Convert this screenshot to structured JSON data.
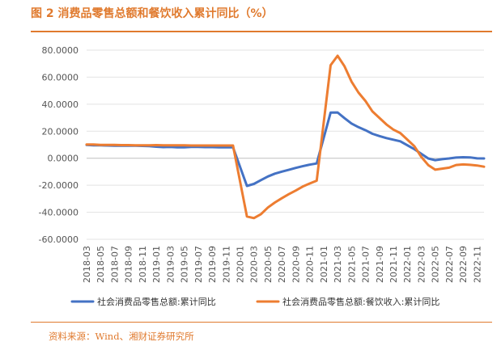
{
  "header": {
    "title": "图 2 消费品零售总额和餐饮收入累计同比（%）"
  },
  "footer": {
    "source": "资料来源：Wind、湘财证券研究所"
  },
  "chart_data": {
    "type": "line",
    "title": "图 2 消费品零售总额和餐饮收入累计同比（%）",
    "xlabel": "",
    "ylabel": "",
    "ylim": [
      -60,
      80
    ],
    "yticks": [
      "80.0000",
      "60.0000",
      "40.0000",
      "20.0000",
      "0.0000",
      "-20.0000",
      "-40.0000",
      "-60.0000"
    ],
    "ytick_values": [
      80,
      60,
      40,
      20,
      0,
      -20,
      -40,
      -60
    ],
    "xtick_labels": [
      "2018-03",
      "2018-05",
      "2018-07",
      "2018-09",
      "2018-11",
      "2019-01",
      "2019-03",
      "2019-05",
      "2019-07",
      "2019-09",
      "2019-11",
      "2020-01",
      "2020-03",
      "2020-05",
      "2020-07",
      "2020-09",
      "2020-11",
      "2021-01",
      "2021-03",
      "2021-05",
      "2021-07",
      "2021-09",
      "2021-11",
      "2022-01",
      "2022-03",
      "2022-05",
      "2022-07",
      "2022-09",
      "2022-11"
    ],
    "grid": true,
    "legend": "bottom",
    "x": [
      "2018-03",
      "2018-04",
      "2018-05",
      "2018-06",
      "2018-07",
      "2018-08",
      "2018-09",
      "2018-10",
      "2018-11",
      "2018-12",
      "2019-01",
      "2019-02",
      "2019-03",
      "2019-04",
      "2019-05",
      "2019-06",
      "2019-07",
      "2019-08",
      "2019-09",
      "2019-10",
      "2019-11",
      "2019-12",
      "2020-02",
      "2020-03",
      "2020-04",
      "2020-05",
      "2020-06",
      "2020-07",
      "2020-08",
      "2020-09",
      "2020-10",
      "2020-11",
      "2020-12",
      "2021-02",
      "2021-03",
      "2021-04",
      "2021-05",
      "2021-06",
      "2021-07",
      "2021-08",
      "2021-09",
      "2021-10",
      "2021-11",
      "2021-12",
      "2022-02",
      "2022-03",
      "2022-04",
      "2022-05",
      "2022-06",
      "2022-07",
      "2022-08",
      "2022-09",
      "2022-10",
      "2022-11",
      "2022-12"
    ],
    "series": [
      {
        "name": "社会消费品零售总额:累计同比",
        "color": "#4472c4",
        "values": [
          9.8,
          9.6,
          9.5,
          9.4,
          9.3,
          9.3,
          9.3,
          9.2,
          9.1,
          9.0,
          8.5,
          8.2,
          8.3,
          8.0,
          8.1,
          8.4,
          8.3,
          8.2,
          8.2,
          8.1,
          8.0,
          8.0,
          -20.5,
          -19.0,
          -16.2,
          -13.5,
          -11.4,
          -9.9,
          -8.6,
          -7.2,
          -5.9,
          -4.8,
          -3.9,
          33.8,
          33.9,
          29.6,
          25.7,
          23.0,
          20.7,
          18.1,
          16.4,
          14.9,
          13.7,
          12.5,
          6.7,
          3.3,
          -0.2,
          -1.5,
          -0.7,
          -0.2,
          0.5,
          0.7,
          0.6,
          -0.1,
          -0.2
        ]
      },
      {
        "name": "社会消费品零售总额:餐饮收入:累计同比",
        "color": "#ed7d31",
        "values": [
          10.2,
          10.1,
          9.9,
          9.9,
          9.8,
          9.7,
          9.7,
          9.6,
          9.5,
          9.5,
          9.7,
          9.6,
          9.6,
          9.6,
          9.5,
          9.4,
          9.4,
          9.4,
          9.4,
          9.4,
          9.4,
          9.4,
          -43.1,
          -44.3,
          -41.4,
          -36.5,
          -32.8,
          -29.6,
          -26.6,
          -23.9,
          -21.0,
          -18.7,
          -16.6,
          68.9,
          75.8,
          68.0,
          56.7,
          48.6,
          42.3,
          34.6,
          29.8,
          25.0,
          21.2,
          18.6,
          8.9,
          1.0,
          -5.1,
          -8.5,
          -7.7,
          -7.0,
          -5.0,
          -4.6,
          -4.9,
          -5.4,
          -6.3
        ]
      }
    ]
  }
}
